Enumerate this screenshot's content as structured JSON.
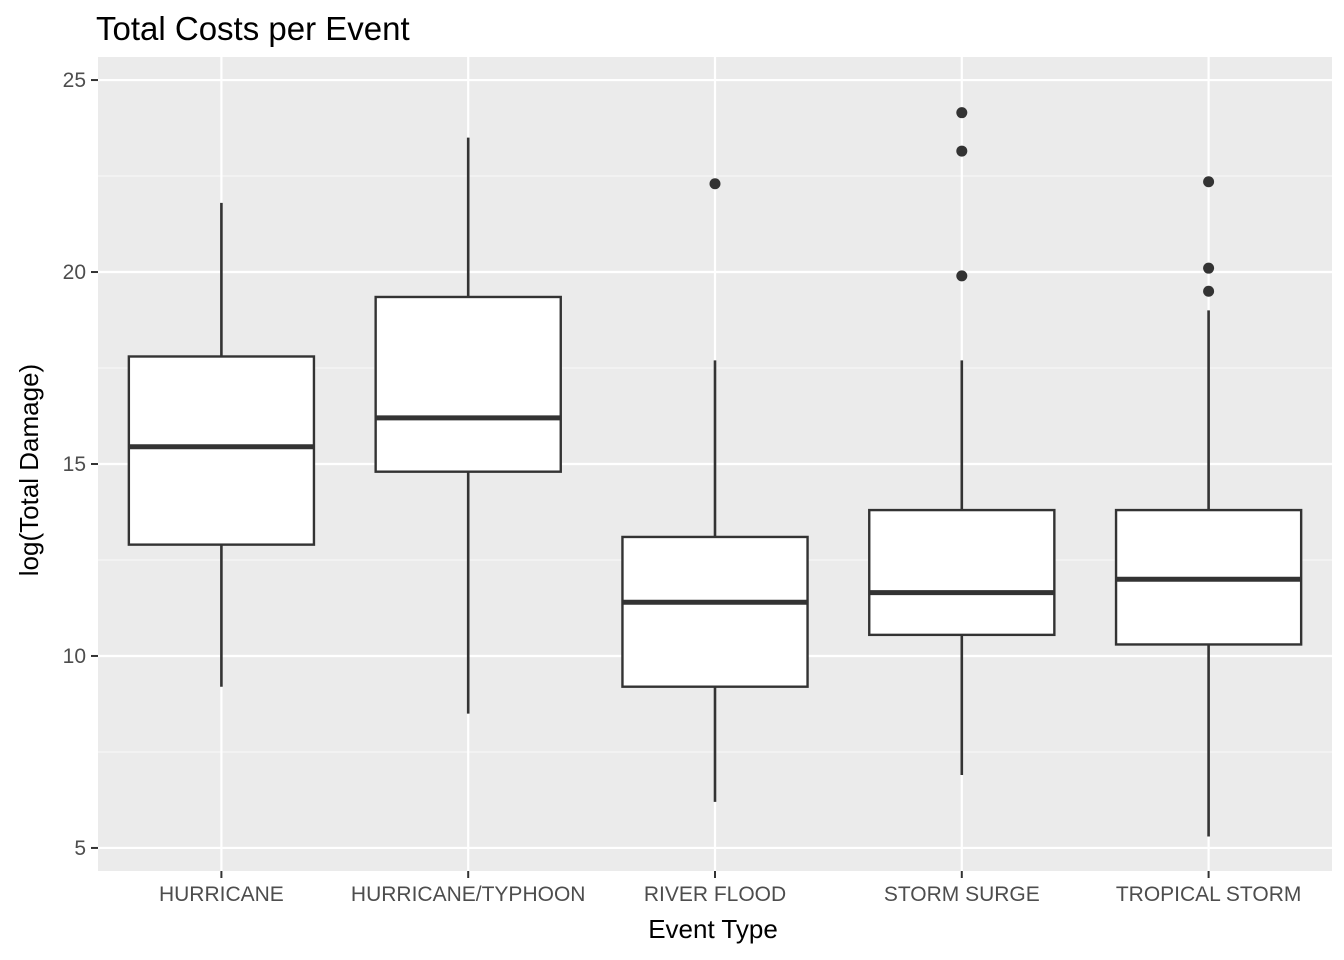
{
  "chart_data": {
    "type": "boxplot",
    "title": "Total Costs per Event",
    "xlabel": "Event Type",
    "ylabel": "log(Total Damage)",
    "ylim": [
      4.4,
      25.6
    ],
    "y_ticks": [
      5,
      10,
      15,
      20,
      25
    ],
    "y_tick_labels": [
      "5",
      "10",
      "15",
      "20",
      "25"
    ],
    "categories": [
      "HURRICANE",
      "HURRICANE/TYPHOON",
      "RIVER FLOOD",
      "STORM SURGE",
      "TROPICAL STORM"
    ],
    "boxes": [
      {
        "category": "HURRICANE",
        "whisker_low": 9.2,
        "q1": 12.9,
        "median": 15.45,
        "q3": 17.8,
        "whisker_high": 21.8,
        "outliers": []
      },
      {
        "category": "HURRICANE/TYPHOON",
        "whisker_low": 8.5,
        "q1": 14.8,
        "median": 16.2,
        "q3": 19.35,
        "whisker_high": 23.5,
        "outliers": []
      },
      {
        "category": "RIVER FLOOD",
        "whisker_low": 6.2,
        "q1": 9.2,
        "median": 11.4,
        "q3": 13.1,
        "whisker_high": 17.7,
        "outliers": [
          22.3
        ]
      },
      {
        "category": "STORM SURGE",
        "whisker_low": 6.9,
        "q1": 10.55,
        "median": 11.65,
        "q3": 13.8,
        "whisker_high": 17.7,
        "outliers": [
          19.9,
          23.15,
          24.15
        ]
      },
      {
        "category": "TROPICAL STORM",
        "whisker_low": 5.3,
        "q1": 10.3,
        "median": 12.0,
        "q3": 13.8,
        "whisker_high": 19.0,
        "outliers": [
          19.5,
          20.1,
          22.35
        ]
      }
    ],
    "grid": true,
    "legend": "none",
    "colors": {
      "panel_background": "#ebebeb",
      "grid_major": "#ffffff",
      "grid_minor": "#f5f5f5",
      "box_fill": "#ffffff",
      "box_line": "#333333",
      "tick_mark": "#333333",
      "tick_label": "#4d4d4d"
    }
  }
}
